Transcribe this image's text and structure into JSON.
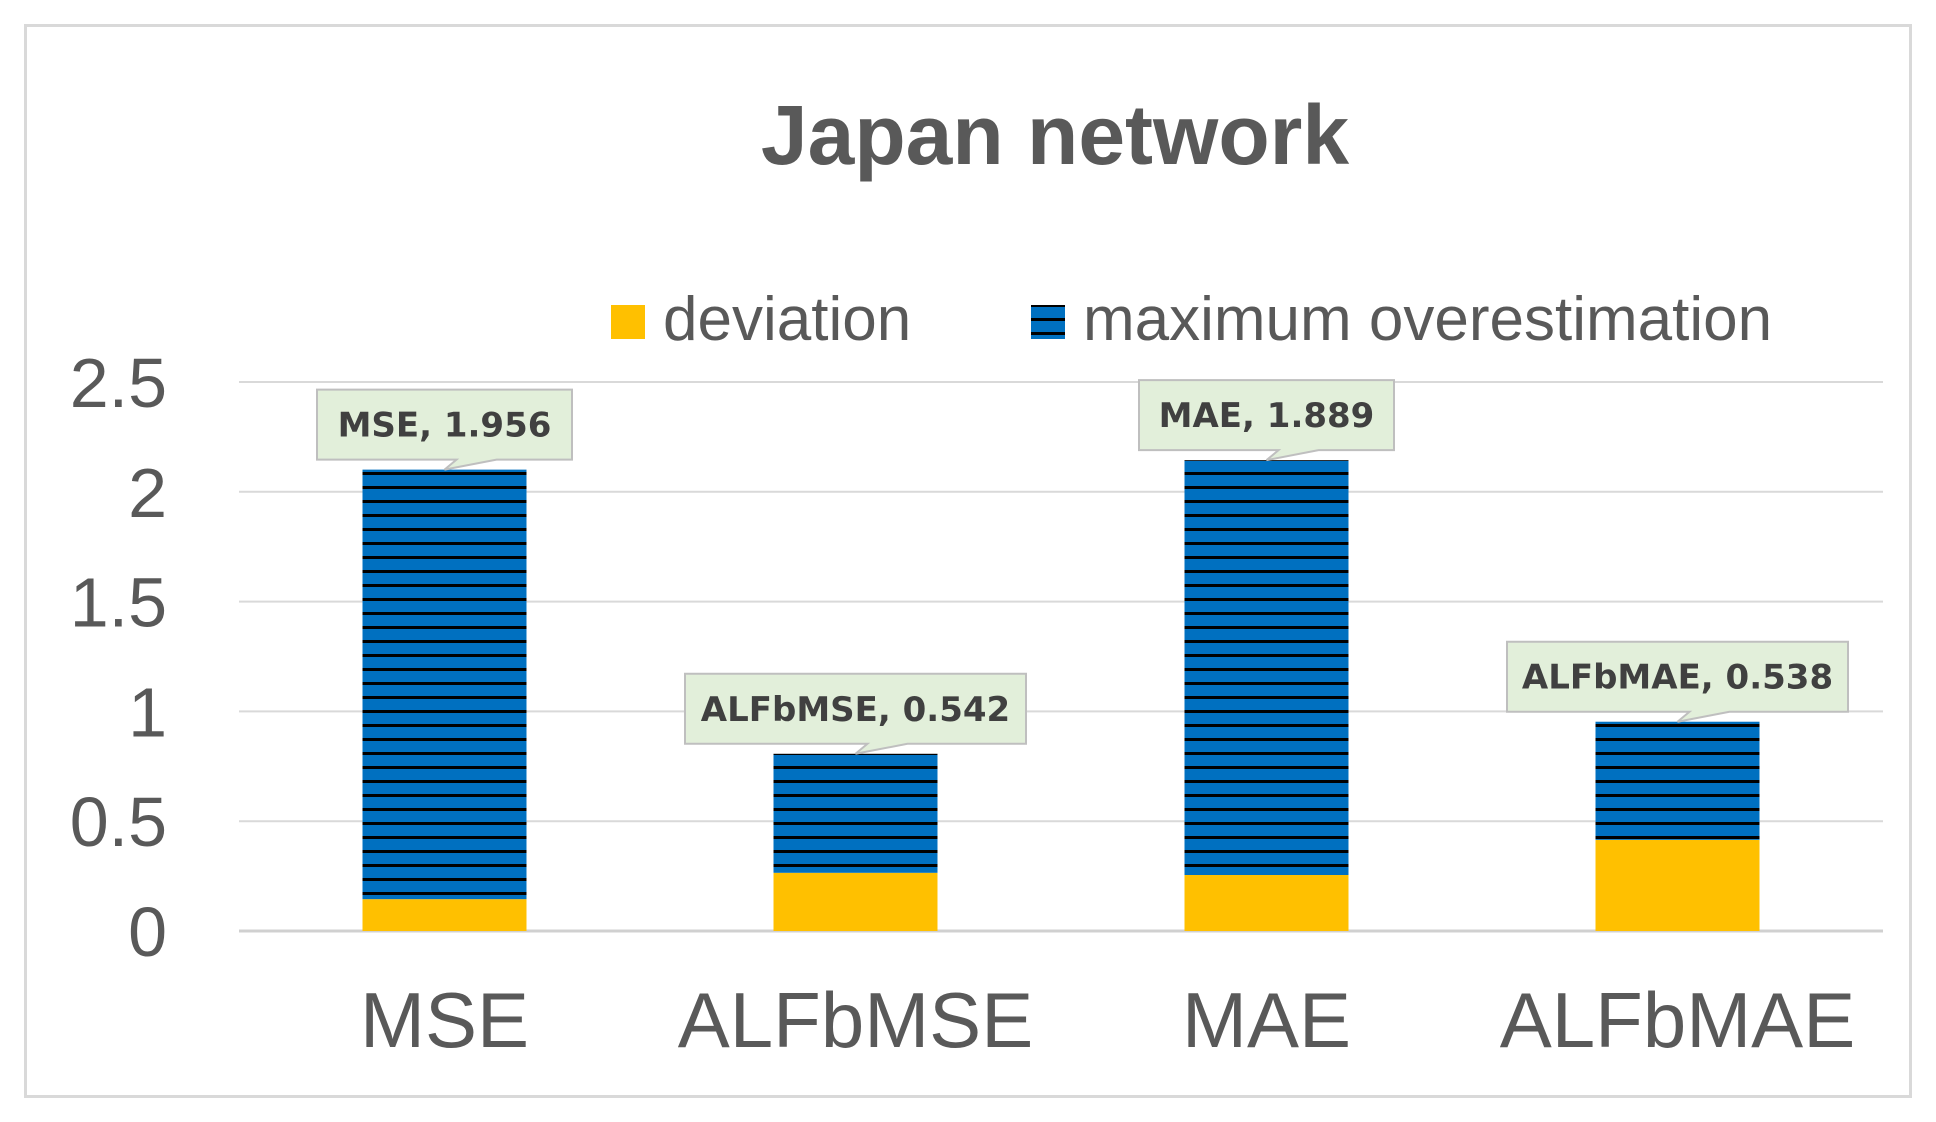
{
  "chart_data": {
    "type": "bar",
    "stacked": true,
    "title": "Japan network",
    "xlabel": "",
    "ylabel": "",
    "categories": [
      "MSE",
      "ALFbMSE",
      "MAE",
      "ALFbMAE"
    ],
    "ylim": [
      0,
      2.5
    ],
    "yticks": [
      "0",
      "0.5",
      "1",
      "1.5",
      "2",
      "2.5"
    ],
    "grid": true,
    "legend_position": "top-right",
    "series": [
      {
        "name": "deviation",
        "values": [
          0.145,
          0.265,
          0.255,
          0.415
        ],
        "color": "#ffc000",
        "pattern": "solid"
      },
      {
        "name": "maximum overestimation",
        "values": [
          1.956,
          0.542,
          1.889,
          0.538
        ],
        "color": "#0070c0",
        "pattern": "horizontal-stripes"
      }
    ],
    "data_labels": [
      "MSE, 1.956",
      "ALFbMSE, 0.542",
      "MAE, 1.889",
      "ALFbMAE, 0.538"
    ],
    "callout_color": "#e2efda"
  }
}
